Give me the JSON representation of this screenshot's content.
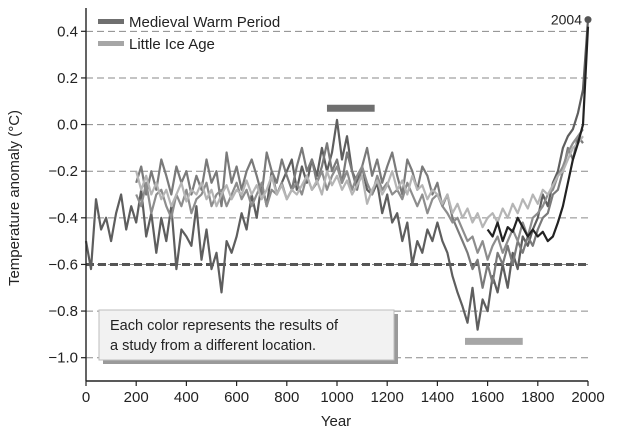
{
  "chart_data": {
    "type": "line",
    "title": "",
    "xlabel": "Year",
    "ylabel": "Temperature anomaly (°C)",
    "xlim": [
      0,
      2000
    ],
    "ylim": [
      -1.1,
      0.5
    ],
    "xticks": [
      0,
      200,
      400,
      600,
      800,
      1000,
      1200,
      1400,
      1600,
      1800,
      2000
    ],
    "yticks": [
      -1.0,
      -0.8,
      -0.6,
      -0.4,
      -0.2,
      0.0,
      0.2,
      0.4
    ],
    "ytick_labels": [
      "−1.0",
      "−0.8",
      "−0.6",
      "−0.4",
      "−0.2",
      "0.0",
      "0.2",
      "0.4"
    ],
    "grid": "horizontal dashed",
    "legend_position": "top-left",
    "legend": [
      {
        "label": "Medieval Warm Period",
        "color": "#6f6f6f"
      },
      {
        "label": "Little Ice Age",
        "color": "#a6a6a6"
      }
    ],
    "bars": [
      {
        "name": "Medieval Warm Period",
        "x": [
          960,
          1150
        ],
        "y": 0.07,
        "color": "#6f6f6f"
      },
      {
        "name": "Little Ice Age",
        "x": [
          1510,
          1740
        ],
        "y": -0.93,
        "color": "#a6a6a6"
      }
    ],
    "reference_line": {
      "y": -0.6,
      "style": "thick dashed",
      "color": "#555555"
    },
    "end_marker": {
      "x": 2004,
      "y": 0.45,
      "label": "2004"
    },
    "annotation": "Each color represents the results of a study from a different location.",
    "annotation_lines": [
      "Each color represents the results of",
      "a study from a different location."
    ],
    "series": [
      {
        "color": "#5e5e5e",
        "x": [
          0,
          20,
          40,
          60,
          80,
          100,
          120,
          140,
          160,
          180,
          200,
          220,
          240,
          260,
          280,
          300,
          320,
          340,
          360,
          380,
          400,
          420,
          440,
          460,
          480,
          500,
          520,
          540,
          560,
          580,
          600,
          620,
          640,
          660,
          680,
          700,
          720,
          740,
          760,
          780,
          800,
          820,
          840,
          860,
          880,
          900,
          920,
          940,
          960,
          980,
          1000,
          1020,
          1040,
          1060,
          1080,
          1100,
          1120,
          1140,
          1160,
          1180,
          1200,
          1220,
          1240,
          1260,
          1280,
          1300,
          1320,
          1340,
          1360,
          1380,
          1400,
          1420,
          1440,
          1460,
          1480,
          1500,
          1520,
          1540,
          1560,
          1580,
          1600,
          1620,
          1640,
          1660,
          1680,
          1700,
          1720,
          1740,
          1760,
          1780,
          1800,
          1820,
          1840,
          1860,
          1880,
          1900,
          1920,
          1940,
          1960,
          1980,
          2000
        ],
        "y": [
          -0.5,
          -0.62,
          -0.32,
          -0.45,
          -0.4,
          -0.5,
          -0.38,
          -0.3,
          -0.45,
          -0.35,
          -0.42,
          -0.28,
          -0.48,
          -0.38,
          -0.55,
          -0.4,
          -0.5,
          -0.35,
          -0.62,
          -0.45,
          -0.48,
          -0.52,
          -0.35,
          -0.58,
          -0.45,
          -0.62,
          -0.55,
          -0.72,
          -0.5,
          -0.55,
          -0.48,
          -0.38,
          -0.45,
          -0.3,
          -0.4,
          -0.25,
          -0.35,
          -0.2,
          -0.3,
          -0.25,
          -0.2,
          -0.15,
          -0.28,
          -0.18,
          -0.25,
          -0.15,
          -0.22,
          -0.1,
          -0.2,
          -0.12,
          0.02,
          -0.15,
          -0.05,
          -0.2,
          -0.25,
          -0.18,
          -0.28,
          -0.3,
          -0.25,
          -0.38,
          -0.3,
          -0.42,
          -0.38,
          -0.5,
          -0.42,
          -0.6,
          -0.5,
          -0.55,
          -0.45,
          -0.5,
          -0.42,
          -0.5,
          -0.55,
          -0.65,
          -0.72,
          -0.78,
          -0.85,
          -0.7,
          -0.88,
          -0.75,
          -0.8,
          -0.65,
          -0.72,
          -0.6,
          -0.7,
          -0.55,
          -0.62,
          -0.48,
          -0.52,
          -0.45,
          -0.4,
          -0.3,
          -0.35,
          -0.25,
          -0.2,
          -0.1,
          -0.05,
          -0.02,
          0.05,
          0.15,
          0.45
        ]
      },
      {
        "color": "#7a7a7a",
        "x": [
          200,
          220,
          240,
          260,
          280,
          300,
          320,
          340,
          360,
          380,
          400,
          420,
          440,
          460,
          480,
          500,
          520,
          540,
          560,
          580,
          600,
          620,
          640,
          660,
          680,
          700,
          720,
          740,
          760,
          780,
          800,
          820,
          840,
          860,
          880,
          900,
          920,
          940,
          960,
          980,
          1000,
          1020,
          1040,
          1060,
          1080,
          1100,
          1120,
          1140,
          1160,
          1180,
          1200,
          1220,
          1240,
          1260,
          1280,
          1300,
          1320,
          1340,
          1360,
          1380,
          1400,
          1420,
          1440,
          1460,
          1480,
          1500,
          1520,
          1540,
          1560,
          1580,
          1600,
          1620,
          1640,
          1660,
          1680,
          1700,
          1720,
          1740,
          1760,
          1780,
          1800,
          1820,
          1840,
          1860,
          1880,
          1900,
          1920,
          1940,
          1960,
          1980
        ],
        "y": [
          -0.25,
          -0.18,
          -0.3,
          -0.2,
          -0.28,
          -0.15,
          -0.22,
          -0.3,
          -0.18,
          -0.25,
          -0.2,
          -0.3,
          -0.22,
          -0.28,
          -0.15,
          -0.25,
          -0.2,
          -0.35,
          -0.12,
          -0.25,
          -0.18,
          -0.28,
          -0.2,
          -0.15,
          -0.22,
          -0.3,
          -0.12,
          -0.2,
          -0.25,
          -0.15,
          -0.22,
          -0.28,
          -0.18,
          -0.1,
          -0.2,
          -0.15,
          -0.25,
          -0.18,
          -0.08,
          -0.2,
          -0.15,
          -0.25,
          -0.12,
          -0.2,
          -0.28,
          -0.18,
          -0.1,
          -0.22,
          -0.15,
          -0.25,
          -0.18,
          -0.12,
          -0.22,
          -0.3,
          -0.15,
          -0.2,
          -0.28,
          -0.18,
          -0.22,
          -0.3,
          -0.25,
          -0.35,
          -0.3,
          -0.4,
          -0.45,
          -0.5,
          -0.55,
          -0.62,
          -0.58,
          -0.7,
          -0.6,
          -0.68,
          -0.55,
          -0.6,
          -0.52,
          -0.6,
          -0.5,
          -0.55,
          -0.48,
          -0.52,
          -0.45,
          -0.4,
          -0.38,
          -0.3,
          -0.28,
          -0.2,
          -0.1,
          -0.15,
          -0.05,
          -0.08
        ]
      },
      {
        "color": "#8d8d8d",
        "x": [
          200,
          220,
          240,
          260,
          280,
          300,
          320,
          340,
          360,
          380,
          400,
          420,
          440,
          460,
          480,
          500,
          520,
          540,
          560,
          580,
          600,
          620,
          640,
          660,
          680,
          700,
          720,
          740,
          760,
          780,
          800,
          820,
          840,
          860,
          880,
          900,
          920,
          940,
          960,
          980,
          1000,
          1020,
          1040,
          1060,
          1080,
          1100,
          1120,
          1140,
          1160,
          1180,
          1200,
          1220,
          1240,
          1260,
          1280,
          1300,
          1320,
          1340,
          1360,
          1380,
          1400,
          1420,
          1440,
          1460,
          1480,
          1500,
          1520,
          1540,
          1560,
          1580,
          1600,
          1620,
          1640,
          1660,
          1680,
          1700,
          1720,
          1740,
          1760,
          1780,
          1800,
          1820,
          1840,
          1860,
          1880,
          1900,
          1920,
          1940,
          1960,
          1980
        ],
        "y": [
          -0.3,
          -0.35,
          -0.25,
          -0.38,
          -0.3,
          -0.28,
          -0.35,
          -0.4,
          -0.3,
          -0.35,
          -0.28,
          -0.38,
          -0.32,
          -0.3,
          -0.25,
          -0.35,
          -0.3,
          -0.28,
          -0.35,
          -0.3,
          -0.25,
          -0.32,
          -0.28,
          -0.35,
          -0.3,
          -0.25,
          -0.35,
          -0.28,
          -0.3,
          -0.25,
          -0.32,
          -0.28,
          -0.25,
          -0.3,
          -0.22,
          -0.28,
          -0.25,
          -0.2,
          -0.28,
          -0.22,
          -0.18,
          -0.25,
          -0.2,
          -0.28,
          -0.22,
          -0.18,
          -0.25,
          -0.3,
          -0.22,
          -0.28,
          -0.25,
          -0.3,
          -0.28,
          -0.32,
          -0.25,
          -0.3,
          -0.35,
          -0.3,
          -0.38,
          -0.32,
          -0.3,
          -0.35,
          -0.38,
          -0.42,
          -0.4,
          -0.45,
          -0.5,
          -0.48,
          -0.55,
          -0.5,
          -0.58,
          -0.52,
          -0.48,
          -0.55,
          -0.5,
          -0.45,
          -0.5,
          -0.42,
          -0.48,
          -0.4,
          -0.38,
          -0.35,
          -0.3,
          -0.28,
          -0.22,
          -0.18,
          -0.12,
          -0.08,
          -0.05,
          -0.02
        ]
      },
      {
        "color": "#b5b5b5",
        "x": [
          200,
          220,
          240,
          260,
          280,
          300,
          320,
          340,
          360,
          380,
          400,
          420,
          440,
          460,
          480,
          500,
          520,
          540,
          560,
          580,
          600,
          620,
          640,
          660,
          680,
          700,
          720,
          740,
          760,
          780,
          800,
          820,
          840,
          860,
          880,
          900,
          920,
          940,
          960,
          980,
          1000,
          1020,
          1040,
          1060,
          1080,
          1100,
          1120,
          1140,
          1160,
          1180,
          1200,
          1220,
          1240,
          1260,
          1280,
          1300,
          1320,
          1340,
          1360,
          1380,
          1400,
          1420,
          1440,
          1460,
          1480,
          1500,
          1520,
          1540,
          1560,
          1580,
          1600,
          1620,
          1640,
          1660,
          1680,
          1700,
          1720,
          1740,
          1760,
          1780,
          1800,
          1820,
          1840,
          1860,
          1880,
          1900,
          1920,
          1940,
          1960,
          1980
        ],
        "y": [
          -0.2,
          -0.28,
          -0.22,
          -0.3,
          -0.25,
          -0.32,
          -0.28,
          -0.35,
          -0.3,
          -0.25,
          -0.33,
          -0.28,
          -0.3,
          -0.25,
          -0.32,
          -0.28,
          -0.35,
          -0.3,
          -0.26,
          -0.32,
          -0.28,
          -0.3,
          -0.24,
          -0.3,
          -0.26,
          -0.32,
          -0.28,
          -0.22,
          -0.3,
          -0.26,
          -0.32,
          -0.28,
          -0.3,
          -0.26,
          -0.22,
          -0.28,
          -0.24,
          -0.3,
          -0.2,
          -0.26,
          -0.22,
          -0.28,
          -0.24,
          -0.3,
          -0.26,
          -0.22,
          -0.34,
          -0.28,
          -0.24,
          -0.3,
          -0.26,
          -0.2,
          -0.28,
          -0.24,
          -0.3,
          -0.22,
          -0.28,
          -0.26,
          -0.32,
          -0.28,
          -0.3,
          -0.34,
          -0.3,
          -0.38,
          -0.34,
          -0.4,
          -0.36,
          -0.42,
          -0.38,
          -0.44,
          -0.4,
          -0.38,
          -0.42,
          -0.36,
          -0.4,
          -0.34,
          -0.38,
          -0.32,
          -0.36,
          -0.3,
          -0.34,
          -0.28,
          -0.3,
          -0.26,
          -0.22,
          -0.2,
          -0.15,
          -0.1,
          -0.08,
          -0.05
        ]
      },
      {
        "color": "#222222",
        "x": [
          1600,
          1620,
          1640,
          1660,
          1680,
          1700,
          1720,
          1740,
          1760,
          1780,
          1800,
          1820,
          1840,
          1860,
          1880,
          1900,
          1920,
          1940,
          1960,
          1980,
          2000
        ],
        "y": [
          -0.45,
          -0.48,
          -0.42,
          -0.5,
          -0.44,
          -0.46,
          -0.4,
          -0.44,
          -0.48,
          -0.45,
          -0.48,
          -0.46,
          -0.5,
          -0.48,
          -0.42,
          -0.35,
          -0.25,
          -0.15,
          -0.08,
          0.0,
          0.42
        ]
      }
    ]
  }
}
